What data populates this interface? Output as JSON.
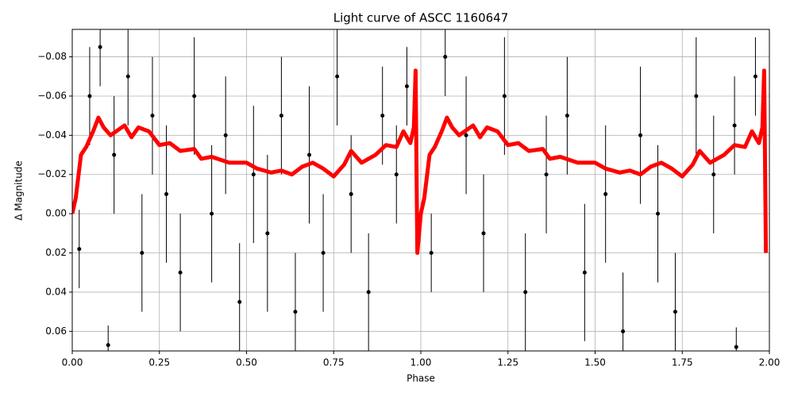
{
  "chart_data": {
    "type": "scatter",
    "title": "Light curve of ASCC 1160647",
    "xlabel": "Phase",
    "ylabel": "Δ Magnitude",
    "xlim": [
      0,
      2
    ],
    "ylim": [
      0.07,
      -0.094
    ],
    "grid": true,
    "xticks": [
      {
        "value": 0,
        "label": "0.00"
      },
      {
        "value": 0.25,
        "label": "0.25"
      },
      {
        "value": 0.5,
        "label": "0.50"
      },
      {
        "value": 0.75,
        "label": "0.75"
      },
      {
        "value": 1,
        "label": "1.00"
      },
      {
        "value": 1.25,
        "label": "1.25"
      },
      {
        "value": 1.5,
        "label": "1.50"
      },
      {
        "value": 1.75,
        "label": "1.75"
      },
      {
        "value": 2,
        "label": "2.00"
      }
    ],
    "yticks": [
      {
        "value": -0.08,
        "label": "−0.08"
      },
      {
        "value": -0.06,
        "label": "−0.06"
      },
      {
        "value": -0.04,
        "label": "−0.04"
      },
      {
        "value": -0.02,
        "label": "−0.02"
      },
      {
        "value": 0,
        "label": "0.00"
      },
      {
        "value": 0.02,
        "label": "0.02"
      },
      {
        "value": 0.04,
        "label": "0.04"
      },
      {
        "value": 0.06,
        "label": "0.06"
      }
    ],
    "points": {
      "color": "#000000",
      "x": [
        0.02,
        0.05,
        0.08,
        0.103,
        0.12,
        0.16,
        0.2,
        0.23,
        0.27,
        0.31,
        0.35,
        0.4,
        0.44,
        0.48,
        0.52,
        0.56,
        0.6,
        0.64,
        0.68,
        0.72,
        0.76,
        0.8,
        0.85,
        0.89,
        0.93,
        0.96,
        1.03,
        1.07,
        1.13,
        1.18,
        1.24,
        1.3,
        1.36,
        1.42,
        1.47,
        1.53,
        1.58,
        1.63,
        1.68,
        1.73,
        1.79,
        1.84,
        1.9,
        1.905,
        1.96
      ],
      "values": [
        0.018,
        -0.06,
        -0.085,
        0.067,
        -0.03,
        -0.07,
        0.02,
        -0.05,
        -0.01,
        0.03,
        -0.06,
        0,
        -0.04,
        0.045,
        -0.02,
        0.01,
        -0.05,
        0.05,
        -0.03,
        0.02,
        -0.07,
        -0.01,
        0.04,
        -0.05,
        -0.02,
        -0.065,
        0.02,
        -0.08,
        -0.04,
        0.01,
        -0.06,
        0.04,
        -0.02,
        -0.05,
        0.03,
        -0.01,
        0.06,
        -0.04,
        0,
        0.05,
        -0.06,
        -0.02,
        -0.045,
        0.068,
        -0.07
      ],
      "errors": [
        0.02,
        0.025,
        0.02,
        0.01,
        0.03,
        0.025,
        0.03,
        0.03,
        0.035,
        0.03,
        0.03,
        0.035,
        0.03,
        0.03,
        0.035,
        0.04,
        0.03,
        0.03,
        0.035,
        0.03,
        0.025,
        0.03,
        0.03,
        0.025,
        0.025,
        0.02,
        0.02,
        0.02,
        0.03,
        0.03,
        0.03,
        0.03,
        0.03,
        0.03,
        0.035,
        0.035,
        0.03,
        0.035,
        0.035,
        0.03,
        0.03,
        0.03,
        0.025,
        0.01,
        0.02
      ]
    },
    "curve": {
      "color": "#ff0000",
      "x": [
        0,
        0.01,
        0.025,
        0.04,
        0.06,
        0.075,
        0.09,
        0.11,
        0.15,
        0.17,
        0.19,
        0.22,
        0.25,
        0.28,
        0.31,
        0.35,
        0.37,
        0.4,
        0.45,
        0.5,
        0.53,
        0.57,
        0.6,
        0.63,
        0.66,
        0.69,
        0.72,
        0.75,
        0.78,
        0.8,
        0.83,
        0.87,
        0.9,
        0.93,
        0.95,
        0.97,
        0.98,
        0.985,
        0.99,
        1,
        1.01,
        1.025,
        1.04,
        1.06,
        1.075,
        1.09,
        1.11,
        1.15,
        1.17,
        1.19,
        1.22,
        1.25,
        1.28,
        1.31,
        1.35,
        1.37,
        1.4,
        1.45,
        1.5,
        1.53,
        1.57,
        1.6,
        1.63,
        1.66,
        1.69,
        1.72,
        1.75,
        1.78,
        1.8,
        1.83,
        1.87,
        1.9,
        1.93,
        1.95,
        1.97,
        1.98,
        1.985,
        1.99
      ],
      "values": [
        0,
        -0.008,
        -0.03,
        -0.034,
        -0.042,
        -0.049,
        -0.044,
        -0.04,
        -0.045,
        -0.039,
        -0.044,
        -0.042,
        -0.035,
        -0.036,
        -0.032,
        -0.033,
        -0.028,
        -0.029,
        -0.026,
        -0.026,
        -0.023,
        -0.021,
        -0.022,
        -0.02,
        -0.024,
        -0.026,
        -0.023,
        -0.019,
        -0.025,
        -0.032,
        -0.026,
        -0.03,
        -0.035,
        -0.034,
        -0.042,
        -0.036,
        -0.044,
        -0.073,
        0.02,
        0,
        -0.008,
        -0.03,
        -0.034,
        -0.042,
        -0.049,
        -0.044,
        -0.04,
        -0.045,
        -0.039,
        -0.044,
        -0.042,
        -0.035,
        -0.036,
        -0.032,
        -0.033,
        -0.028,
        -0.029,
        -0.026,
        -0.026,
        -0.023,
        -0.021,
        -0.022,
        -0.02,
        -0.024,
        -0.026,
        -0.023,
        -0.019,
        -0.025,
        -0.032,
        -0.026,
        -0.03,
        -0.035,
        -0.034,
        -0.042,
        -0.036,
        -0.044,
        -0.073,
        0.02
      ]
    }
  }
}
